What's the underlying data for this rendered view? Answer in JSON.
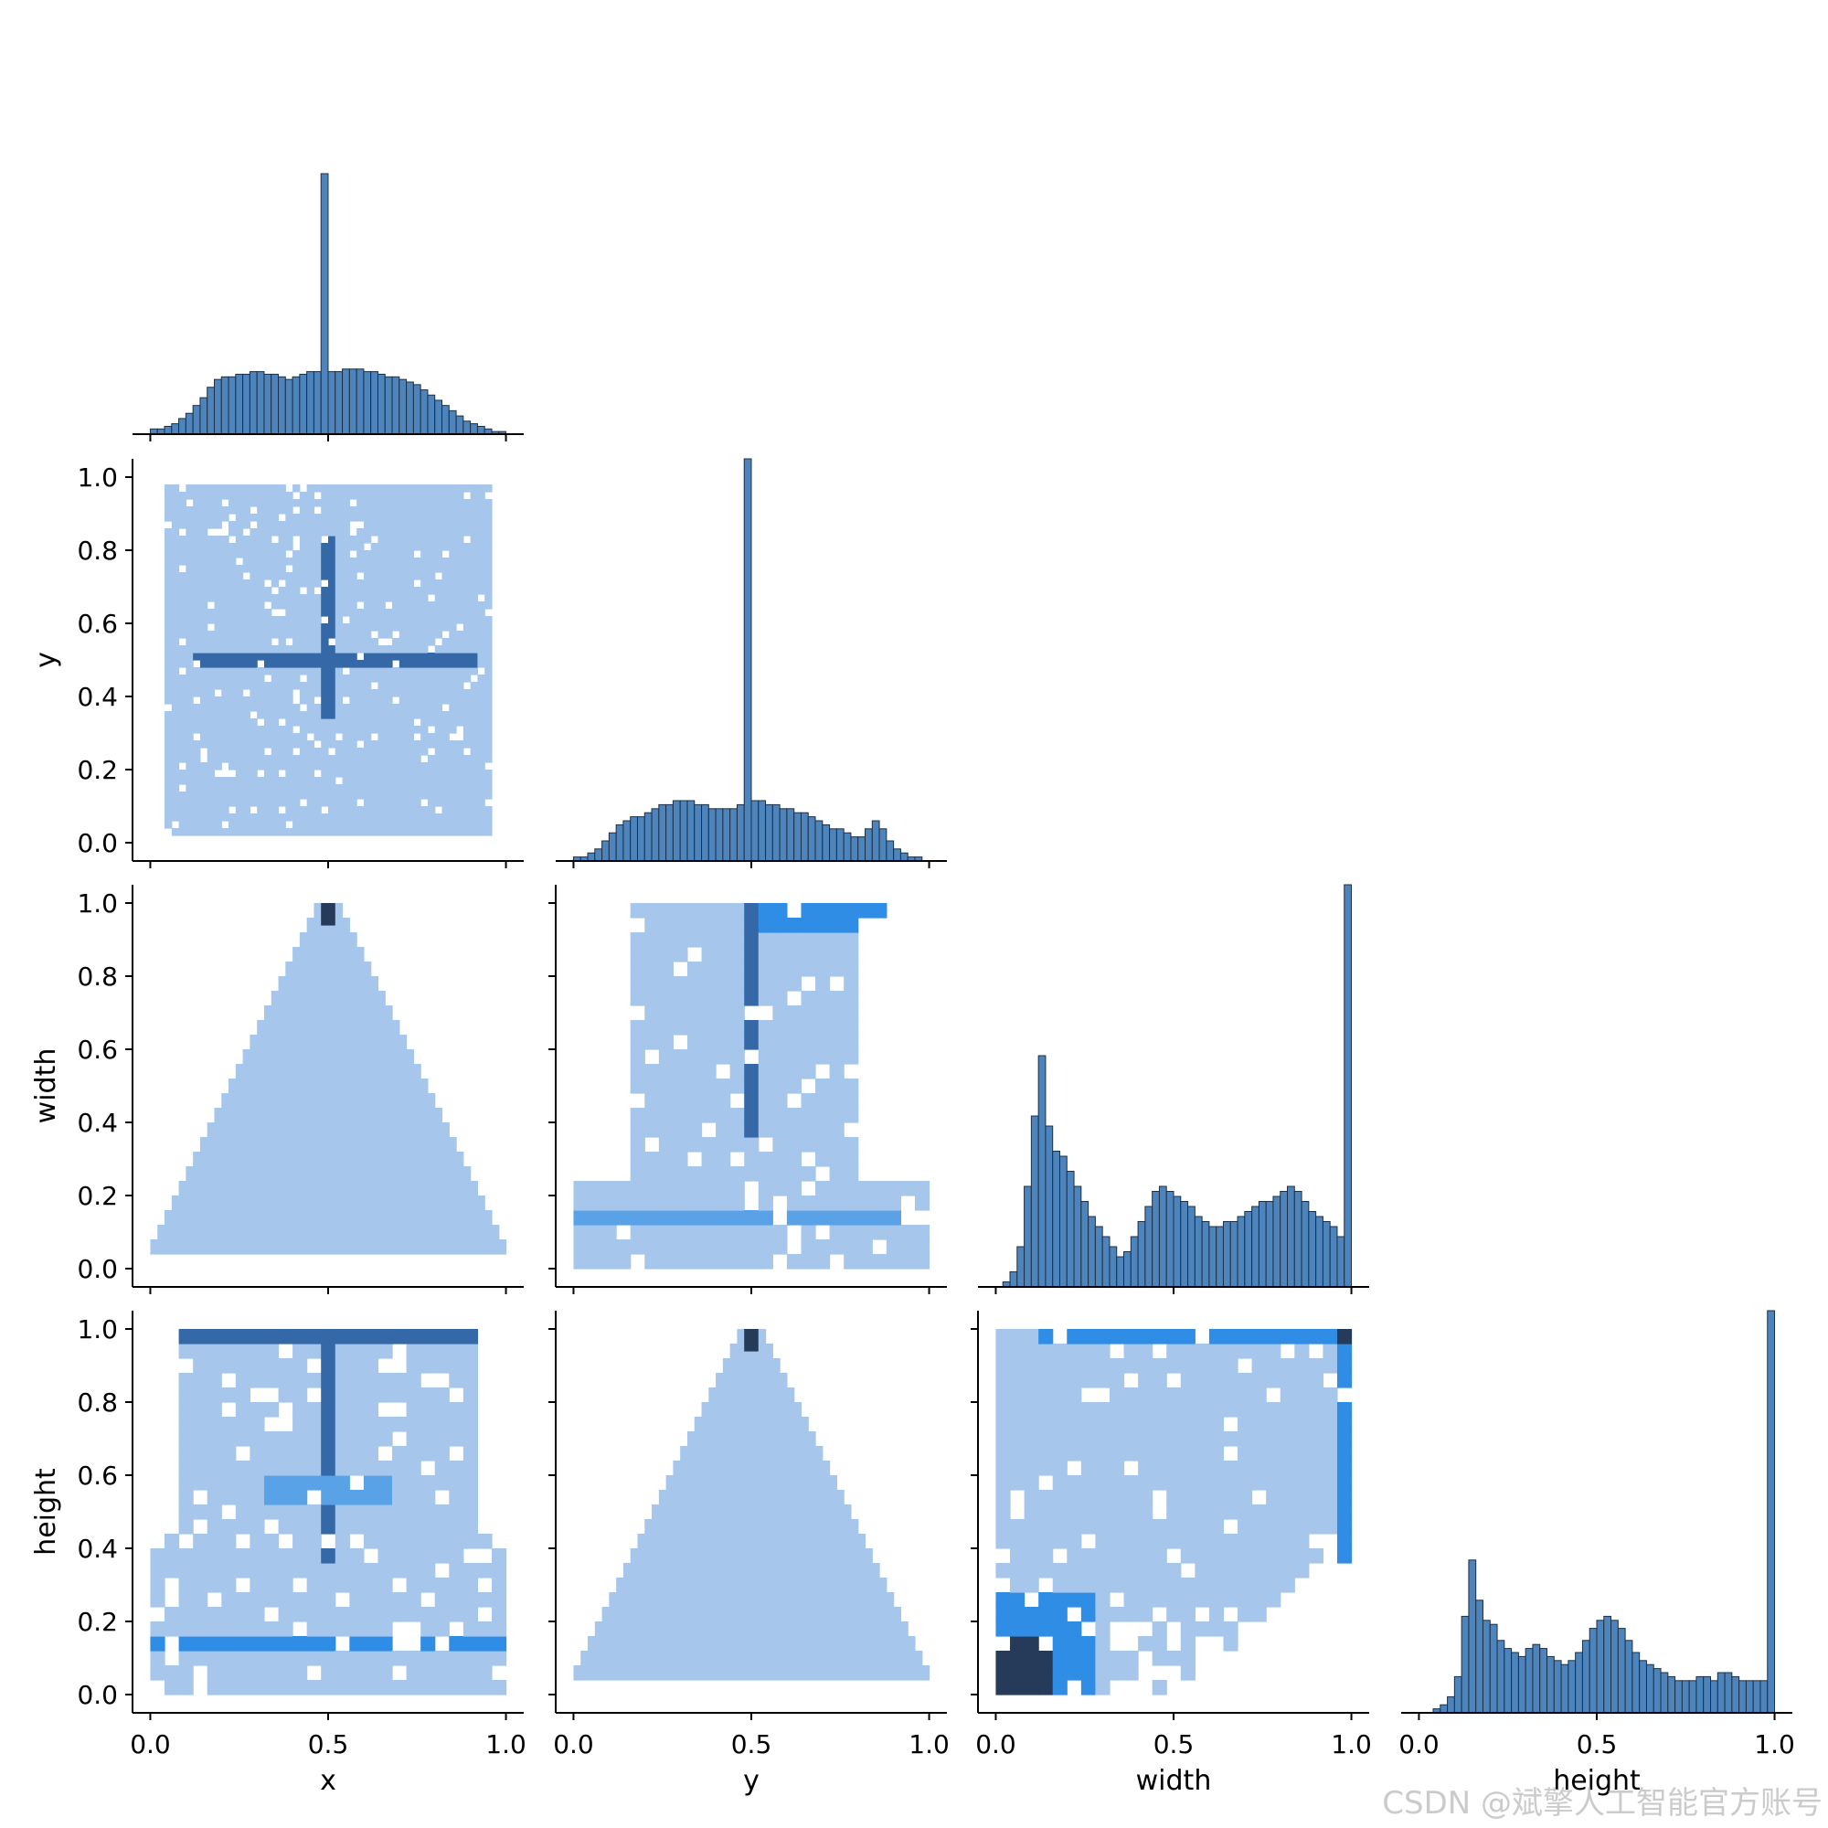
{
  "chart_data": {
    "type": "pairplot",
    "variables": [
      "x",
      "y",
      "width",
      "height"
    ],
    "corner": true,
    "hist_color": "#4c84bb",
    "hist_edge": "#1f2f45",
    "tick_values": [
      0.0,
      0.5,
      1.0
    ],
    "tick_labels": [
      "0.0",
      "0.5",
      "1.0"
    ],
    "y_tick_values": [
      0.0,
      0.2,
      0.4,
      0.6,
      0.8,
      1.0
    ],
    "y_tick_labels": [
      "0.0",
      "0.2",
      "0.4",
      "0.6",
      "0.8",
      "1.0"
    ],
    "xlim": [
      -0.05,
      1.05
    ],
    "ylim": [
      -0.05,
      1.05
    ],
    "diagonal": [
      {
        "variable": "x",
        "bins": 50,
        "range": [
          0.0,
          1.0
        ],
        "heights": [
          2,
          2,
          3,
          4,
          6,
          8,
          11,
          14,
          18,
          21,
          22,
          22,
          23,
          23,
          24,
          24,
          23,
          23,
          22,
          21,
          22,
          23,
          24,
          24,
          100,
          24,
          24,
          25,
          25,
          25,
          24,
          24,
          23,
          22,
          22,
          21,
          20,
          19,
          17,
          15,
          13,
          11,
          9,
          7,
          5,
          4,
          3,
          2,
          1,
          1
        ]
      },
      {
        "variable": "y",
        "bins": 50,
        "range": [
          0.0,
          1.0
        ],
        "heights": [
          1,
          1,
          2,
          3,
          5,
          7,
          9,
          10,
          11,
          11,
          12,
          13,
          14,
          14,
          15,
          15,
          15,
          14,
          14,
          13,
          13,
          13,
          13,
          14,
          100,
          15,
          15,
          14,
          14,
          13,
          13,
          12,
          12,
          11,
          10,
          9,
          8,
          8,
          7,
          6,
          6,
          8,
          10,
          8,
          5,
          3,
          2,
          1,
          1,
          0
        ]
      },
      {
        "variable": "width",
        "bins": 50,
        "range": [
          0.0,
          1.0
        ],
        "heights": [
          0,
          1,
          3,
          8,
          20,
          34,
          46,
          32,
          27,
          26,
          23,
          20,
          17,
          14,
          12,
          10,
          8,
          6,
          7,
          10,
          13,
          16,
          19,
          20,
          19,
          18,
          17,
          16,
          14,
          13,
          12,
          12,
          13,
          13,
          14,
          15,
          16,
          17,
          17,
          18,
          19,
          20,
          19,
          17,
          15,
          14,
          13,
          12,
          10,
          80
        ]
      },
      {
        "variable": "height",
        "bins": 50,
        "range": [
          0.0,
          1.0
        ],
        "heights": [
          0,
          0,
          1,
          2,
          4,
          9,
          24,
          38,
          28,
          23,
          22,
          18,
          16,
          15,
          14,
          16,
          17,
          16,
          14,
          13,
          12,
          13,
          15,
          18,
          21,
          23,
          24,
          23,
          21,
          18,
          15,
          13,
          12,
          11,
          10,
          9,
          8,
          8,
          8,
          9,
          9,
          8,
          10,
          10,
          9,
          8,
          8,
          8,
          8,
          100
        ]
      }
    ],
    "pairs": [
      {
        "row": "y",
        "col": "x",
        "pattern": "uniform-cross",
        "bins": 50,
        "center": [
          0.5,
          0.5
        ]
      },
      {
        "row": "width",
        "col": "x",
        "pattern": "triangle-x",
        "bins": 50,
        "peak": [
          0.5,
          1.0
        ]
      },
      {
        "row": "width",
        "col": "y",
        "pattern": "band-y",
        "bins": 25,
        "hot_line": 0.5
      },
      {
        "row": "height",
        "col": "x",
        "pattern": "band-x",
        "bins": 25,
        "hot_line": 0.5
      },
      {
        "row": "height",
        "col": "y",
        "pattern": "triangle-y",
        "bins": 50,
        "peak": [
          0.5,
          1.0
        ]
      },
      {
        "row": "height",
        "col": "width",
        "pattern": "corner-wh",
        "bins": 25,
        "hot_spot": [
          0.1,
          0.1
        ]
      }
    ]
  },
  "watermark": "CSDN @斌擎人工智能官方账号"
}
